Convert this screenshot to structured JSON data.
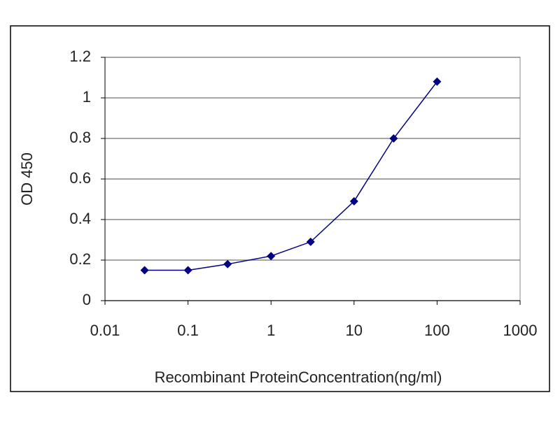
{
  "chart_data": {
    "type": "line",
    "x_label": "Recombinant ProteinConcentration(ng/ml)",
    "y_label": "OD 450",
    "x_scale": "log",
    "grid": true,
    "x": [
      0.03,
      0.1,
      0.3,
      1,
      3,
      10,
      30,
      100
    ],
    "series": [
      {
        "color": "#000080",
        "values": [
          0.15,
          0.15,
          0.18,
          0.22,
          0.29,
          0.49,
          0.8,
          1.08
        ]
      }
    ],
    "xlim": [
      0.01,
      1000
    ],
    "xticks": [
      0.01,
      0.1,
      1,
      10,
      100,
      1000
    ],
    "ylim": [
      0,
      1.2
    ],
    "yticks": [
      0,
      0.2,
      0.4,
      0.6,
      0.8,
      1,
      1.2
    ]
  }
}
